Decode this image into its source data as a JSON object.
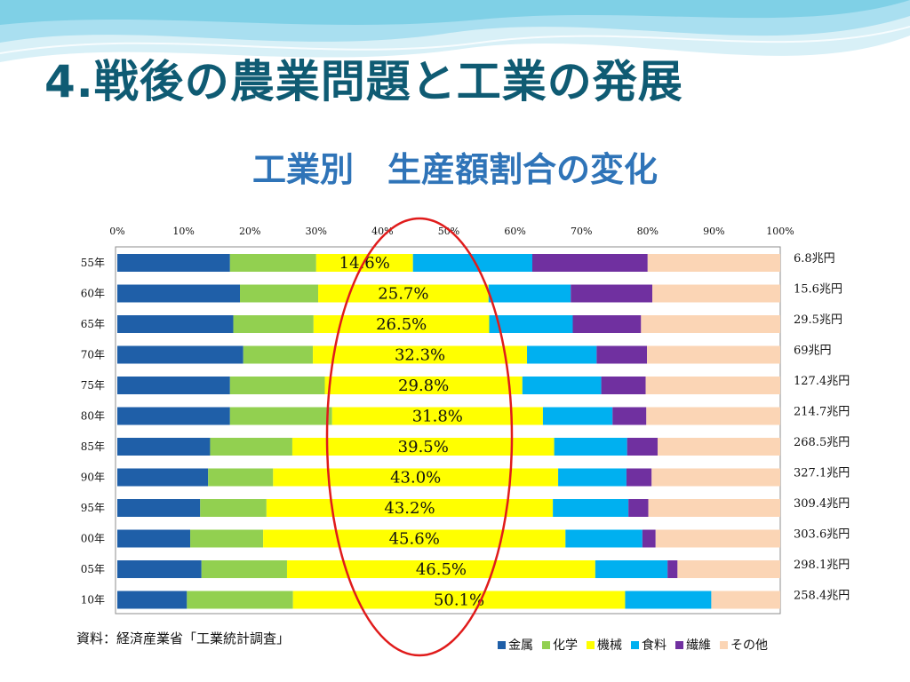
{
  "slide": {
    "title": "4.戦後の農業問題と工業の発展",
    "subtitle": "工業別　生産額割合の変化",
    "source": "資料：経済産業省「工業統計調査」"
  },
  "colors": {
    "title": "#0f5b73",
    "subtitle": "#2f74b8",
    "highlight_ellipse": "#e01b1b",
    "wave_light": "#bfe6f2",
    "wave_mid": "#7fd0e6",
    "series": [
      "#1f5fa8",
      "#92d050",
      "#ffff00",
      "#00b0f0",
      "#7030a0",
      "#fbd5b5"
    ]
  },
  "chart_data": {
    "type": "bar",
    "orientation": "horizontal",
    "stacked": "percent",
    "categories": [
      "55年",
      "60年",
      "65年",
      "70年",
      "75年",
      "80年",
      "85年",
      "90年",
      "95年",
      "00年",
      "05年",
      "10年"
    ],
    "xlim": [
      0,
      100
    ],
    "x_ticks": [
      "0%",
      "10%",
      "20%",
      "30%",
      "40%",
      "50%",
      "60%",
      "70%",
      "80%",
      "90%",
      "100%"
    ],
    "series": [
      {
        "name": "金属",
        "values": [
          17,
          18.5,
          17.5,
          19,
          17,
          17,
          14,
          13.7,
          12.5,
          11,
          12.7,
          10.5
        ]
      },
      {
        "name": "化学",
        "values": [
          13,
          11.8,
          12.1,
          10.5,
          14.3,
          15.4,
          12.4,
          9.8,
          10,
          11,
          12.9,
          16
        ]
      },
      {
        "name": "機械",
        "values": [
          14.6,
          25.7,
          26.5,
          32.3,
          29.8,
          31.8,
          39.5,
          43.0,
          43.2,
          45.6,
          46.5,
          50.1
        ]
      },
      {
        "name": "食料",
        "values": [
          18,
          12.4,
          12.6,
          10.5,
          11.9,
          10.5,
          11,
          10.3,
          11.4,
          11.6,
          10.9,
          13
        ]
      },
      {
        "name": "繊維",
        "values": [
          17.4,
          12.3,
          10.3,
          7.6,
          6.7,
          5.1,
          4.6,
          3.8,
          3,
          2,
          1.5,
          0
        ]
      },
      {
        "name": "その他",
        "values": [
          20,
          19.3,
          21,
          20.1,
          20.3,
          20.2,
          18.5,
          19.4,
          19.9,
          18.8,
          15.5,
          10.4
        ]
      }
    ],
    "data_labels": [
      "14.6%",
      "25.7%",
      "26.5%",
      "32.3%",
      "29.8%",
      "31.8%",
      "39.5%",
      "43.0%",
      "43.2%",
      "45.6%",
      "46.5%",
      "50.1%"
    ],
    "totals": [
      "6.8兆円",
      "15.6兆円",
      "29.5兆円",
      "69兆円",
      "127.4兆円",
      "214.7兆円",
      "268.5兆円",
      "327.1兆円",
      "309.4兆円",
      "303.6兆円",
      "298.1兆円",
      "258.4兆円"
    ],
    "legend_position": "bottom-right",
    "grid": false
  }
}
